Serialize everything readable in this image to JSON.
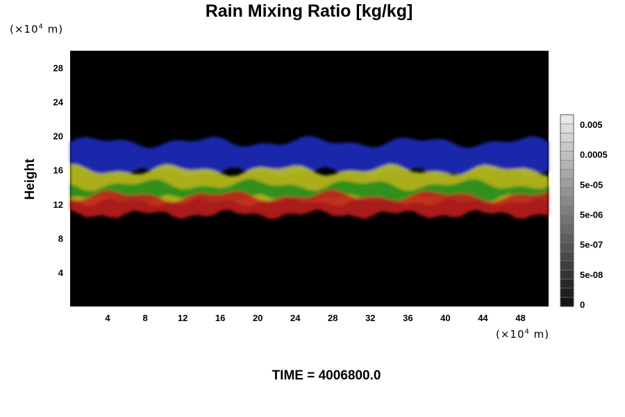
{
  "chart_data": {
    "type": "heatmap",
    "title": "Rain Mixing Ratio [kg/kg]",
    "xlabel": "",
    "ylabel": "Height",
    "x_unit": {
      "prefix": "(×10",
      "exp": "4",
      "suffix": " m)"
    },
    "y_unit": {
      "prefix": "(×10",
      "exp": "4",
      "suffix": " m)"
    },
    "xlim": [
      0,
      51
    ],
    "ylim": [
      0,
      30
    ],
    "x_ticks": [
      "4",
      "8",
      "12",
      "16",
      "20",
      "24",
      "28",
      "32",
      "36",
      "40",
      "44",
      "48"
    ],
    "y_ticks": [
      "4",
      "8",
      "12",
      "16",
      "20",
      "24",
      "28"
    ],
    "colorbar": {
      "labels": [
        "0.005",
        "0.0005",
        "5e-05",
        "5e-06",
        "5e-07",
        "5e-08",
        "0"
      ]
    },
    "layers": [
      {
        "color": "#1c2ec8",
        "y_range": [
          15.8,
          19.3
        ]
      },
      {
        "color": "#c8cc1c",
        "y_range": [
          12.3,
          16.0
        ]
      },
      {
        "color": "#1c8a1c",
        "y_range": [
          12.6,
          14.3
        ]
      },
      {
        "color": "#c81c1c",
        "y_range": [
          10.8,
          13.0
        ]
      }
    ],
    "background_color": "#000000"
  },
  "time_label": "TIME = 4006800.0"
}
